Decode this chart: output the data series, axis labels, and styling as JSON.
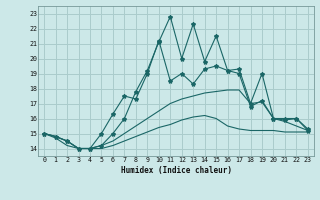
{
  "xlabel": "Humidex (Indice chaleur)",
  "xlim": [
    -0.5,
    23.5
  ],
  "ylim": [
    13.5,
    23.5
  ],
  "xticks": [
    0,
    1,
    2,
    3,
    4,
    5,
    6,
    7,
    8,
    9,
    10,
    11,
    12,
    13,
    14,
    15,
    16,
    17,
    18,
    19,
    20,
    21,
    22,
    23
  ],
  "yticks": [
    14,
    15,
    16,
    17,
    18,
    19,
    20,
    21,
    22,
    23
  ],
  "bg_color": "#cce8e8",
  "grid_color": "#aacccc",
  "line_color": "#1a6666",
  "series1_x": [
    0,
    1,
    2,
    3,
    4,
    5,
    6,
    7,
    8,
    9,
    10,
    11,
    12,
    13,
    14,
    15,
    16,
    17,
    18,
    19,
    20,
    21,
    22,
    23
  ],
  "series1_y": [
    15.0,
    14.8,
    14.5,
    14.0,
    14.0,
    14.2,
    14.5,
    15.0,
    15.5,
    16.0,
    16.5,
    17.0,
    17.3,
    17.5,
    17.7,
    17.8,
    17.9,
    17.9,
    17.0,
    17.1,
    16.0,
    15.8,
    15.5,
    15.2
  ],
  "series2_x": [
    0,
    1,
    2,
    3,
    4,
    5,
    6,
    7,
    8,
    9,
    10,
    11,
    12,
    13,
    14,
    15,
    16,
    17,
    18,
    19,
    20,
    21,
    22,
    23
  ],
  "series2_y": [
    15.0,
    14.7,
    14.2,
    14.0,
    14.0,
    14.0,
    14.2,
    14.5,
    14.8,
    15.1,
    15.4,
    15.6,
    15.9,
    16.1,
    16.2,
    16.0,
    15.5,
    15.3,
    15.2,
    15.2,
    15.2,
    15.1,
    15.1,
    15.1
  ],
  "series3_x": [
    0,
    1,
    2,
    3,
    4,
    5,
    6,
    7,
    8,
    9,
    10,
    11,
    12,
    13,
    14,
    15,
    16,
    17,
    18,
    19,
    20,
    21,
    22,
    23
  ],
  "series3_y": [
    15.0,
    14.8,
    14.5,
    14.0,
    14.0,
    15.0,
    16.3,
    17.5,
    17.3,
    19.0,
    21.2,
    18.5,
    19.0,
    18.3,
    19.3,
    19.5,
    19.2,
    19.0,
    16.8,
    17.2,
    16.0,
    15.9,
    16.0,
    15.3
  ],
  "series4_x": [
    0,
    1,
    2,
    3,
    4,
    5,
    6,
    7,
    8,
    9,
    10,
    11,
    12,
    13,
    14,
    15,
    16,
    17,
    18,
    19,
    20,
    21,
    22,
    23
  ],
  "series4_y": [
    15.0,
    14.8,
    14.5,
    14.0,
    14.0,
    14.2,
    15.0,
    16.0,
    17.8,
    19.2,
    21.1,
    22.8,
    20.0,
    22.3,
    19.8,
    21.5,
    19.2,
    19.3,
    17.0,
    19.0,
    16.0,
    16.0,
    16.0,
    15.2
  ]
}
